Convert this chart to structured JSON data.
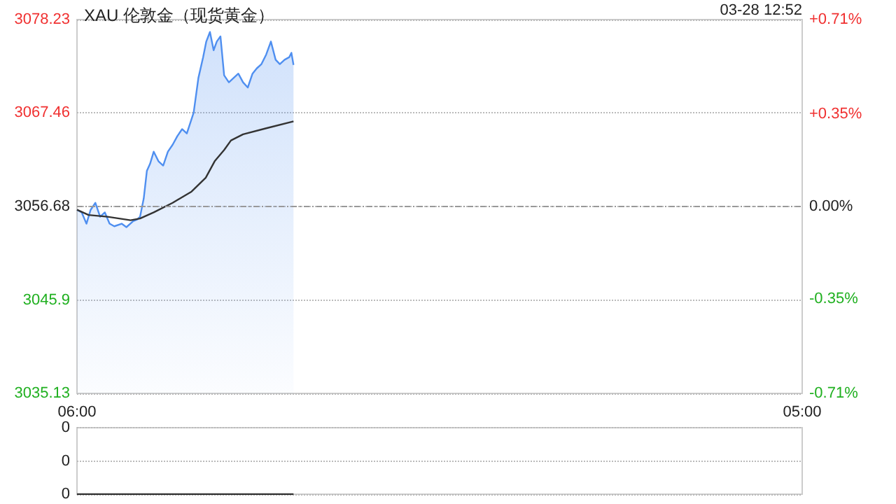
{
  "chart_data": [
    {
      "type": "area",
      "title": "XAU 伦敦金（现货黄金）",
      "annotations": [
        "03-28 12:52"
      ],
      "xlim": [
        "--03-28T06:00",
        "--03-29T05:00"
      ],
      "xticks": [
        {
          "value": "--03-28T06:00",
          "label": "06:00"
        },
        {
          "value": "--03-29T05:00",
          "label": "05:00"
        }
      ],
      "ylim": [
        3035.13,
        3078.23
      ],
      "yticks": [
        3035.13,
        3045.9,
        3056.68,
        3067.46,
        3078.23
      ],
      "y2lim": [
        -0.71,
        0.71
      ],
      "y2ticks": [
        {
          "value": -0.71,
          "label": "-0.71%"
        },
        {
          "value": -0.35,
          "label": "-0.35%"
        },
        {
          "value": 0,
          "label": "0.00%"
        },
        {
          "value": 0.35,
          "label": "+0.35%"
        },
        {
          "value": 0.71,
          "label": "+0.71%"
        }
      ],
      "grid": "y",
      "ref_lines": [
        {
          "axis": "y",
          "value": 3056.68
        }
      ],
      "series": [
        {
          "color": "#4f8ff0",
          "x": [
            "--03-28T06:00",
            "--03-28T06:09",
            "--03-28T06:18",
            "--03-28T06:26",
            "--03-28T06:35",
            "--03-28T06:44",
            "--03-28T06:53",
            "--03-28T07:02",
            "--03-28T07:11",
            "--03-28T07:25",
            "--03-28T07:34",
            "--03-28T07:47",
            "--03-28T07:55",
            "--03-28T08:00",
            "--03-28T08:07",
            "--03-28T08:13",
            "--03-28T08:19",
            "--03-28T08:26",
            "--03-28T08:35",
            "--03-28T08:44",
            "--03-28T08:53",
            "--03-28T09:02",
            "--03-28T09:11",
            "--03-28T09:20",
            "--03-28T09:29",
            "--03-28T09:36",
            "--03-28T09:42",
            "--03-28T09:51",
            "--03-28T10:00",
            "--03-28T10:06",
            "--03-28T10:13",
            "--03-28T10:20",
            "--03-28T10:26",
            "--03-28T10:33",
            "--03-28T10:40",
            "--03-28T10:49",
            "--03-28T10:58",
            "--03-28T11:07",
            "--03-28T11:16",
            "--03-28T11:25",
            "--03-28T11:34",
            "--03-28T11:42",
            "--03-28T11:51",
            "--03-28T12:00",
            "--03-28T12:09",
            "--03-28T12:18",
            "--03-28T12:26",
            "--03-28T12:35",
            "--03-28T12:44",
            "--03-28T12:48",
            "--03-28T12:52"
          ],
          "values": [
            3056.3,
            3056.0,
            3054.7,
            3056.3,
            3057.1,
            3055.5,
            3056.0,
            3054.7,
            3054.4,
            3054.7,
            3054.3,
            3055.0,
            3055.2,
            3055.5,
            3057.6,
            3060.8,
            3061.6,
            3063.0,
            3061.9,
            3061.4,
            3063.0,
            3063.8,
            3064.8,
            3065.6,
            3065.1,
            3066.4,
            3067.5,
            3071.5,
            3073.9,
            3075.7,
            3076.8,
            3074.7,
            3075.7,
            3076.3,
            3071.8,
            3071.0,
            3071.5,
            3072.0,
            3071.0,
            3070.4,
            3072.0,
            3072.6,
            3073.1,
            3074.2,
            3075.7,
            3073.6,
            3073.1,
            3073.6,
            3073.9,
            3074.4,
            3073.0
          ]
        },
        {
          "type": "line",
          "color": "#333333",
          "x": [
            "--03-28T06:00",
            "--03-28T06:22",
            "--03-28T06:58",
            "--03-28T07:42",
            "--03-28T08:00",
            "--03-28T08:26",
            "--03-28T09:02",
            "--03-28T09:38",
            "--03-28T10:05",
            "--03-28T10:22",
            "--03-28T10:40",
            "--03-28T10:53",
            "--03-28T11:16",
            "--03-28T12:00",
            "--03-28T12:52"
          ],
          "values": [
            3056.3,
            3055.7,
            3055.5,
            3055.1,
            3055.3,
            3056.0,
            3057.1,
            3058.4,
            3060.0,
            3061.9,
            3063.2,
            3064.3,
            3065.0,
            3065.7,
            3066.5
          ]
        }
      ]
    },
    {
      "type": "line",
      "xlim": [
        "--03-28T06:00",
        "--03-29T05:00"
      ],
      "ylim": [
        0,
        0.4
      ],
      "yticks": [
        {
          "value": 0,
          "label": "0"
        },
        {
          "value": 0.2,
          "label": "0"
        },
        {
          "value": 0.4,
          "label": "0"
        }
      ],
      "grid": "y",
      "tick_labels": "y",
      "series": [
        {
          "color": "#333333",
          "x": [
            "--03-28T06:00",
            "--03-28T12:52"
          ],
          "values": [
            0,
            0
          ]
        }
      ]
    }
  ]
}
